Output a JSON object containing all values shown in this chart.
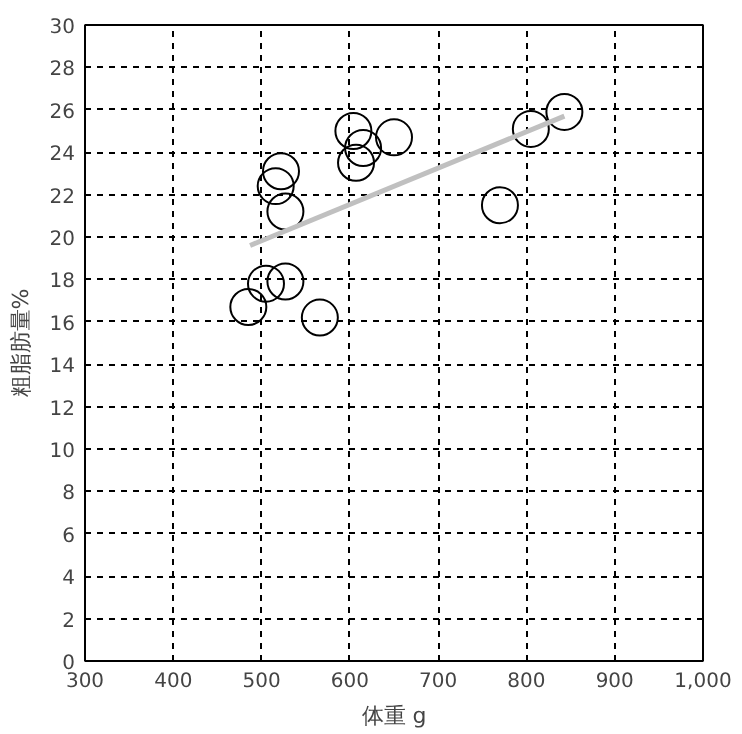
{
  "chart_data": {
    "type": "scatter",
    "xlabel": "体重 g",
    "ylabel": "粗脂肪量%",
    "xlim": [
      300,
      1000
    ],
    "ylim": [
      0,
      30
    ],
    "xticks": [
      300,
      400,
      500,
      600,
      700,
      800,
      900,
      {
        "value": 1000,
        "label": "1,000"
      }
    ],
    "yticks": [
      0,
      2,
      4,
      6,
      8,
      10,
      12,
      14,
      16,
      18,
      20,
      22,
      24,
      26,
      28,
      30
    ],
    "grid": true,
    "series": [
      {
        "marker": "circle",
        "color": "#000000",
        "x": [
          485,
          505,
          527,
          566,
          522,
          516,
          527,
          604,
          607,
          615,
          650,
          805,
          843,
          770
        ],
        "values": [
          16.7,
          17.8,
          17.9,
          16.2,
          23.1,
          22.4,
          21.2,
          25.0,
          23.5,
          24.2,
          24.7,
          25.1,
          25.9,
          21.5
        ]
      },
      {
        "type": "line",
        "color": "#c0c0c0",
        "x": [
          487,
          843
        ],
        "values": [
          19.6,
          25.7
        ]
      }
    ]
  }
}
